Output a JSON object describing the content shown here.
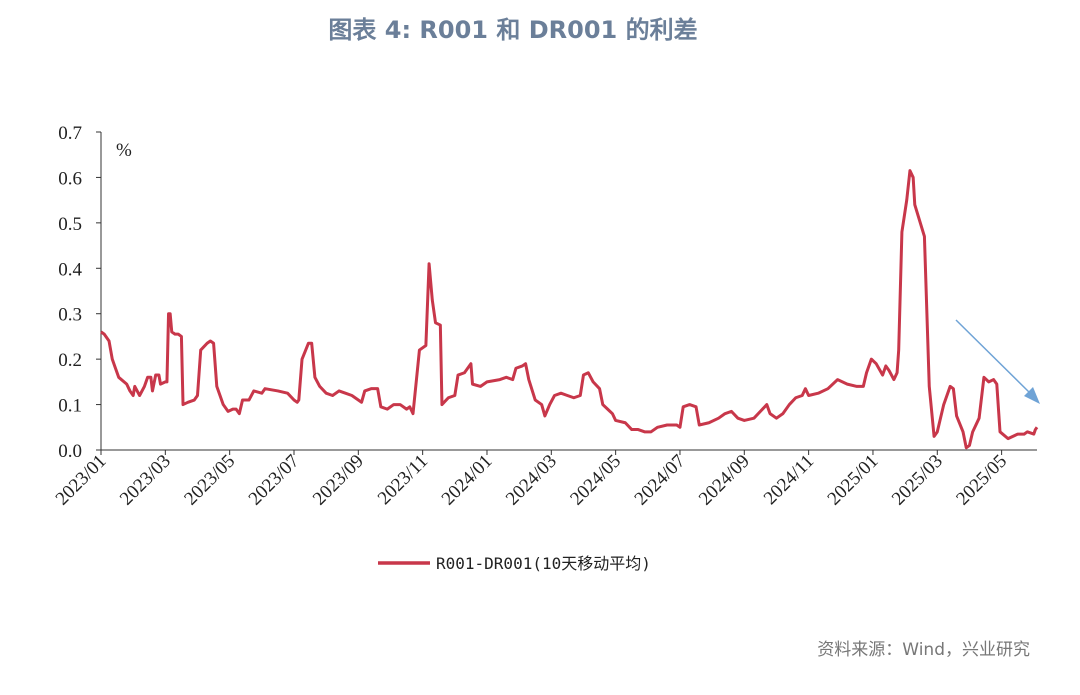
{
  "chart_data": {
    "type": "line",
    "title": "图表 4: R001 和 DR001 的利差",
    "unit": "%",
    "source": "资料来源：Wind，兴业研究",
    "x": [
      0,
      0.1,
      0.25,
      0.35,
      0.45,
      0.55,
      0.8,
      0.9,
      1.0,
      1.05,
      1.2,
      1.35,
      1.45,
      1.55,
      1.6,
      1.7,
      1.8,
      1.85,
      2.0,
      2.05,
      2.1,
      2.15,
      2.2,
      2.3,
      2.4,
      2.5,
      2.55,
      2.7,
      2.9,
      3.0,
      3.1,
      3.3,
      3.4,
      3.5,
      3.6,
      3.8,
      3.95,
      4.1,
      4.2,
      4.3,
      4.4,
      4.6,
      4.75,
      5.0,
      5.1,
      5.5,
      5.8,
      6.0,
      6.1,
      6.15,
      6.25,
      6.45,
      6.55,
      6.65,
      6.8,
      7.0,
      7.2,
      7.4,
      7.6,
      7.8,
      8.0,
      8.1,
      8.2,
      8.4,
      8.6,
      8.7,
      8.9,
      9.1,
      9.3,
      9.5,
      9.6,
      9.7,
      9.8,
      9.9,
      10.1,
      10.2,
      10.3,
      10.4,
      10.55,
      10.6,
      10.8,
      11.0,
      11.1,
      11.3,
      11.5,
      11.55,
      11.8,
      12.0,
      12.4,
      12.6,
      12.8,
      12.9,
      13.1,
      13.2,
      13.3,
      13.5,
      13.7,
      13.8,
      13.95,
      14.1,
      14.3,
      14.5,
      14.7,
      14.9,
      15.0,
      15.15,
      15.3,
      15.5,
      15.6,
      15.75,
      15.9,
      16.0,
      16.3,
      16.5,
      16.7,
      16.9,
      17.1,
      17.3,
      17.6,
      17.9,
      18.0,
      18.1,
      18.3,
      18.5,
      18.6,
      18.9,
      19.2,
      19.4,
      19.6,
      19.8,
      20.0,
      20.3,
      20.5,
      20.7,
      20.8,
      21.0,
      21.2,
      21.4,
      21.6,
      21.8,
      21.9,
      22.0,
      22.3,
      22.6,
      22.9,
      23.2,
      23.5,
      23.7,
      23.8,
      23.95,
      24.1,
      24.3,
      24.4,
      24.5,
      24.65,
      24.75,
      24.8,
      24.9,
      25.05,
      25.15,
      25.25,
      25.3,
      25.6,
      25.75,
      25.9,
      26.0,
      26.2,
      26.4,
      26.5,
      26.6,
      26.8,
      26.9,
      27.0,
      27.1,
      27.3,
      27.45,
      27.6,
      27.75,
      27.85,
      27.95,
      28.2,
      28.5,
      28.7,
      28.8,
      29.0,
      29.05,
      29.1
    ],
    "series": [
      {
        "name": "R001-DR001(10天移动平均)",
        "color": "#c8374a",
        "values": [
          0.26,
          0.255,
          0.24,
          0.2,
          0.18,
          0.16,
          0.145,
          0.13,
          0.12,
          0.14,
          0.12,
          0.14,
          0.16,
          0.16,
          0.13,
          0.165,
          0.165,
          0.145,
          0.15,
          0.15,
          0.3,
          0.3,
          0.26,
          0.255,
          0.255,
          0.25,
          0.1,
          0.105,
          0.11,
          0.12,
          0.22,
          0.235,
          0.24,
          0.235,
          0.14,
          0.1,
          0.085,
          0.09,
          0.09,
          0.08,
          0.11,
          0.11,
          0.13,
          0.125,
          0.135,
          0.13,
          0.125,
          0.11,
          0.105,
          0.11,
          0.2,
          0.235,
          0.235,
          0.16,
          0.14,
          0.125,
          0.12,
          0.13,
          0.125,
          0.12,
          0.11,
          0.105,
          0.13,
          0.135,
          0.135,
          0.095,
          0.09,
          0.1,
          0.1,
          0.09,
          0.095,
          0.08,
          0.15,
          0.22,
          0.23,
          0.41,
          0.33,
          0.28,
          0.275,
          0.1,
          0.115,
          0.12,
          0.165,
          0.17,
          0.19,
          0.145,
          0.14,
          0.15,
          0.155,
          0.16,
          0.155,
          0.18,
          0.185,
          0.19,
          0.155,
          0.11,
          0.1,
          0.075,
          0.1,
          0.12,
          0.125,
          0.12,
          0.115,
          0.12,
          0.165,
          0.17,
          0.15,
          0.135,
          0.1,
          0.09,
          0.08,
          0.065,
          0.06,
          0.045,
          0.045,
          0.04,
          0.04,
          0.05,
          0.055,
          0.055,
          0.05,
          0.095,
          0.1,
          0.095,
          0.055,
          0.06,
          0.07,
          0.08,
          0.085,
          0.07,
          0.065,
          0.07,
          0.085,
          0.1,
          0.08,
          0.07,
          0.08,
          0.1,
          0.115,
          0.12,
          0.135,
          0.12,
          0.125,
          0.135,
          0.155,
          0.145,
          0.14,
          0.14,
          0.17,
          0.2,
          0.19,
          0.165,
          0.185,
          0.175,
          0.155,
          0.17,
          0.22,
          0.48,
          0.55,
          0.615,
          0.6,
          0.54,
          0.47,
          0.14,
          0.03,
          0.04,
          0.1,
          0.14,
          0.135,
          0.075,
          0.04,
          0.005,
          0.01,
          0.04,
          0.07,
          0.16,
          0.15,
          0.155,
          0.145,
          0.04,
          0.025,
          0.035,
          0.035,
          0.04,
          0.035,
          0.045,
          0.05
        ]
      }
    ],
    "xlim": [
      0,
      29.1
    ],
    "xticks": [
      {
        "value": 0,
        "label": "2023/01"
      },
      {
        "value": 2,
        "label": "2023/03"
      },
      {
        "value": 4,
        "label": "2023/05"
      },
      {
        "value": 6,
        "label": "2023/07"
      },
      {
        "value": 8,
        "label": "2023/09"
      },
      {
        "value": 10,
        "label": "2023/11"
      },
      {
        "value": 12,
        "label": "2024/01"
      },
      {
        "value": 14,
        "label": "2024/03"
      },
      {
        "value": 16,
        "label": "2024/05"
      },
      {
        "value": 18,
        "label": "2024/07"
      },
      {
        "value": 20,
        "label": "2024/09"
      },
      {
        "value": 22,
        "label": "2024/11"
      },
      {
        "value": 24,
        "label": "2025/01"
      },
      {
        "value": 26,
        "label": "2025/03"
      },
      {
        "value": 28,
        "label": "2025/05"
      }
    ],
    "ylim": [
      0,
      0.7
    ],
    "yticks": [
      {
        "value": 0,
        "label": "0.0"
      },
      0.1,
      0.2,
      0.3,
      0.4,
      0.5,
      0.6,
      0.7
    ],
    "grid": false
  }
}
